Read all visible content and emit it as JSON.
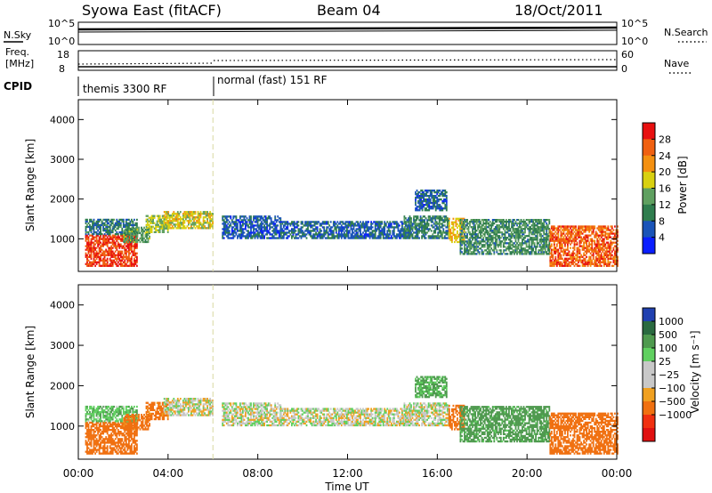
{
  "header": {
    "station": "Syowa East (fitACF)",
    "beam": "Beam 04",
    "date": "18/Oct/2011"
  },
  "noise_panel": {
    "left_label": "N.Sky",
    "left_ticks": [
      "10^5",
      "10^0"
    ],
    "right_ticks": [
      "10^5",
      "10^0"
    ],
    "right_label": "N.Search"
  },
  "freq_panel": {
    "left_label_1": "Freq.",
    "left_label_2": "[MHz]",
    "left_ticks": [
      "18",
      "8"
    ],
    "right_ticks": [
      "60",
      "0"
    ],
    "right_label": "Nave"
  },
  "cpid": {
    "label": "CPID",
    "modes": [
      "themis 3300 RF",
      "normal (fast) 151 RF"
    ]
  },
  "colors": {
    "power": [
      "#0a1eff",
      "#1a54b8",
      "#2f7d4e",
      "#5fa060",
      "#d8d010",
      "#f49010",
      "#f06010",
      "#e81010"
    ],
    "velocity": [
      "#2040b0",
      "#2a6a40",
      "#4f9a4f",
      "#60d060",
      "#c8c8c8",
      "#c8c8c8",
      "#f0a020",
      "#f07010",
      "#f03010",
      "#e01010"
    ]
  },
  "chart_data": [
    {
      "type": "heatmap",
      "panel": "power",
      "ylabel": "Slant Range [km]",
      "yticks": [
        "1000",
        "2000",
        "3000",
        "4000"
      ],
      "ylim": [
        180,
        4500
      ],
      "xlim": [
        0,
        24
      ],
      "colorbar_label": "Power [dB]",
      "colorbar_ticks": [
        "4",
        "8",
        "12",
        "16",
        "20",
        "24",
        "28"
      ],
      "colorbar_range": [
        0,
        32
      ],
      "regions": [
        {
          "t0": 0.3,
          "t1": 2.6,
          "r0": 300,
          "r1": 1100,
          "v": 28
        },
        {
          "t0": 0.3,
          "t1": 2.6,
          "r0": 1100,
          "r1": 1500,
          "v": 9
        },
        {
          "t0": 2.0,
          "t1": 3.2,
          "r0": 900,
          "r1": 1300,
          "v": 13
        },
        {
          "t0": 3.0,
          "t1": 4.0,
          "r0": 1150,
          "r1": 1600,
          "v": 16
        },
        {
          "t0": 3.8,
          "t1": 6.0,
          "r0": 1250,
          "r1": 1700,
          "v": 18
        },
        {
          "t0": 6.4,
          "t1": 9.0,
          "r0": 1000,
          "r1": 1550,
          "v": 6
        },
        {
          "t0": 9.0,
          "t1": 14.8,
          "r0": 1000,
          "r1": 1450,
          "v": 7
        },
        {
          "t0": 14.5,
          "t1": 16.5,
          "r0": 1000,
          "r1": 1550,
          "v": 10
        },
        {
          "t0": 15.0,
          "t1": 16.4,
          "r0": 1700,
          "r1": 2200,
          "v": 7
        },
        {
          "t0": 16.5,
          "t1": 17.2,
          "r0": 900,
          "r1": 1500,
          "v": 20
        },
        {
          "t0": 17.0,
          "t1": 21.0,
          "r0": 600,
          "r1": 1500,
          "v": 11
        },
        {
          "t0": 21.0,
          "t1": 24.0,
          "r0": 300,
          "r1": 1300,
          "v": 26
        }
      ]
    },
    {
      "type": "heatmap",
      "panel": "velocity",
      "ylabel": "Slant Range [km]",
      "yticks": [
        "1000",
        "2000",
        "3000",
        "4000"
      ],
      "ylim": [
        180,
        4500
      ],
      "xlim": [
        0,
        24
      ],
      "xticks": [
        "00:00",
        "04:00",
        "08:00",
        "12:00",
        "16:00",
        "20:00",
        "00:00"
      ],
      "xlabel": "Time UT",
      "colorbar_label": "Velocity [m s⁻¹]",
      "colorbar_ticks": [
        "1000",
        "500",
        "100",
        "25",
        "−25",
        "−100",
        "−500",
        "−1000"
      ],
      "colorbar_range": [
        -1000,
        1000
      ],
      "regions": [
        {
          "t0": 0.3,
          "t1": 2.6,
          "r0": 300,
          "r1": 1100,
          "v": -400
        },
        {
          "t0": 0.3,
          "t1": 2.6,
          "r0": 1100,
          "r1": 1500,
          "v": 80
        },
        {
          "t0": 2.0,
          "t1": 3.2,
          "r0": 900,
          "r1": 1300,
          "v": -150
        },
        {
          "t0": 3.0,
          "t1": 4.0,
          "r0": 1150,
          "r1": 1600,
          "v": -150
        },
        {
          "t0": 3.8,
          "t1": 6.0,
          "r0": 1250,
          "r1": 1700,
          "v": 0
        },
        {
          "t0": 6.4,
          "t1": 9.0,
          "r0": 1000,
          "r1": 1550,
          "v": 0
        },
        {
          "t0": 9.0,
          "t1": 14.8,
          "r0": 1000,
          "r1": 1450,
          "v": 0
        },
        {
          "t0": 14.5,
          "t1": 16.5,
          "r0": 1000,
          "r1": 1550,
          "v": 10
        },
        {
          "t0": 15.0,
          "t1": 16.4,
          "r0": 1700,
          "r1": 2200,
          "v": 120
        },
        {
          "t0": 16.5,
          "t1": 17.2,
          "r0": 900,
          "r1": 1500,
          "v": -200
        },
        {
          "t0": 17.0,
          "t1": 21.0,
          "r0": 600,
          "r1": 1500,
          "v": 150
        },
        {
          "t0": 21.0,
          "t1": 24.0,
          "r0": 300,
          "r1": 1300,
          "v": -300
        }
      ]
    }
  ]
}
